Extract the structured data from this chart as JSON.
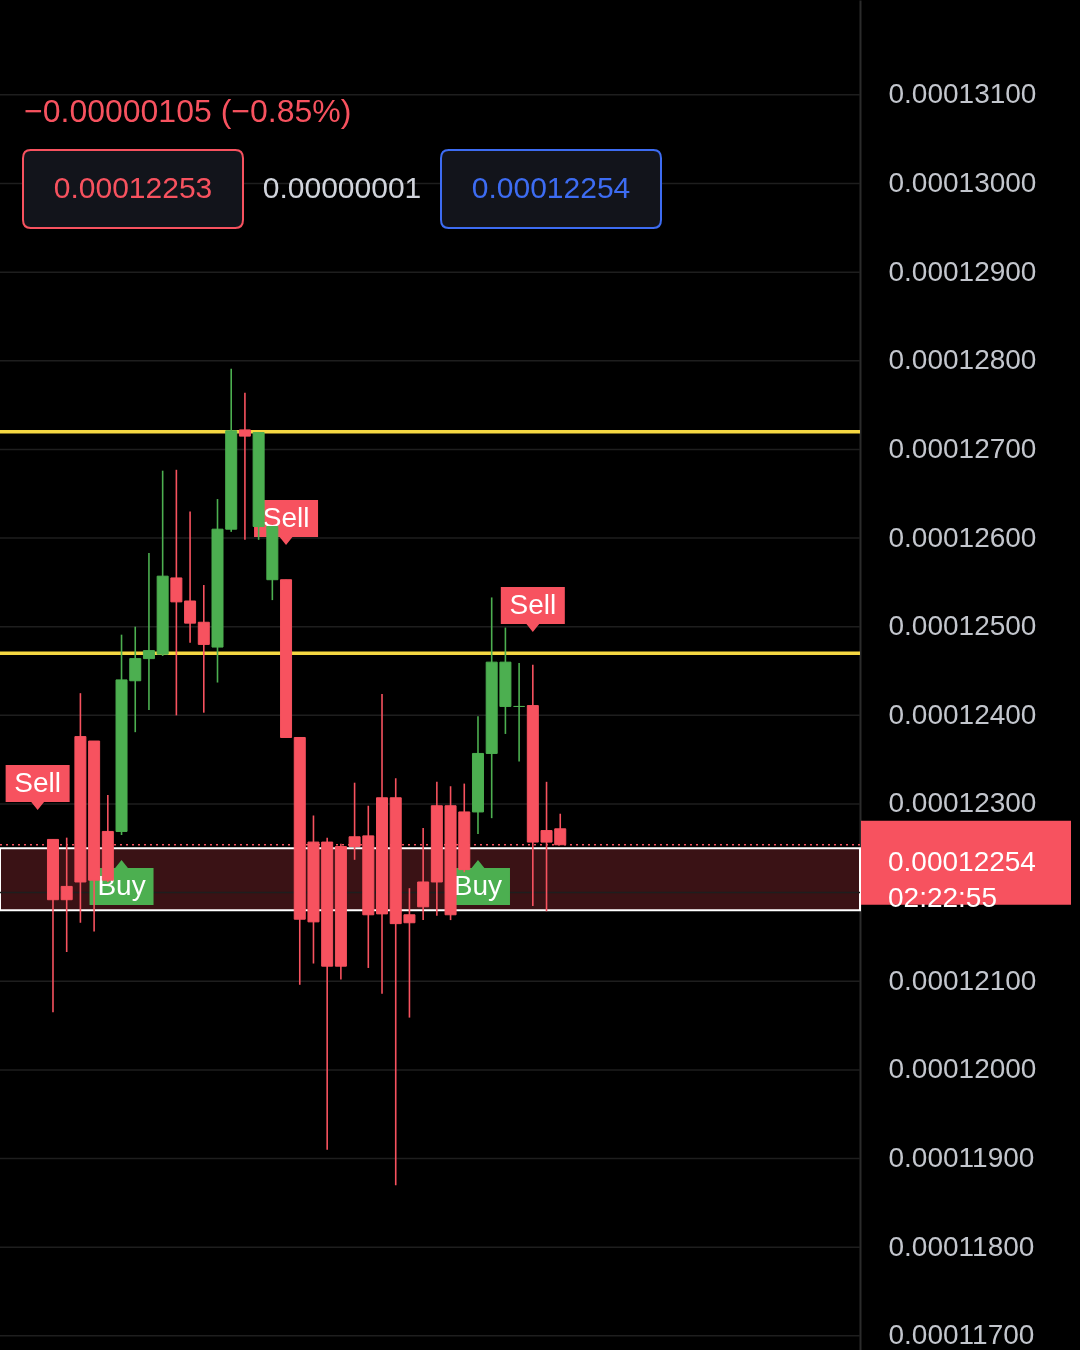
{
  "chart_data": {
    "type": "candlestick",
    "subtitle": "−0.00000105 (−0.85%)",
    "categories": [
      null,
      null,
      null,
      null,
      null,
      null,
      null,
      null,
      null,
      null,
      null,
      null,
      null,
      null,
      null,
      null,
      null,
      null,
      null,
      null,
      null,
      null,
      null,
      null,
      null,
      null,
      null,
      null,
      null,
      null,
      null,
      null,
      null,
      null,
      null,
      null,
      null,
      null,
      null,
      null,
      null,
      null,
      null,
      null,
      null,
      null,
      null,
      null,
      null,
      null,
      null,
      null,
      null,
      null,
      null,
      null,
      null,
      null,
      null,
      null,
      null,
      null
    ],
    "ohlc": [
      null,
      null,
      null,
      [
        0.0001226,
        0.0001226,
        0.00012065,
        0.00012192
      ],
      [
        0.00012207,
        0.00012262,
        0.00012133,
        0.00012192
      ],
      [
        0.00012376,
        0.00012425,
        0.00012166,
        0.00012212
      ],
      [
        0.00012371,
        0.00012371,
        0.00012156,
        0.00012214
      ],
      [
        0.00012269,
        0.0001231,
        0.00012212,
        0.00012214
      ],
      [
        0.00012269,
        0.00012491,
        0.00012265,
        0.0001244
      ],
      [
        0.00012439,
        0.000125,
        0.00012381,
        0.00012464
      ],
      [
        0.00012464,
        0.00012583,
        0.00012406,
        0.00012473
      ],
      [
        0.00012469,
        0.00012676,
        0.00012467,
        0.00012557
      ],
      [
        0.00012555,
        0.00012677,
        0.000124,
        0.00012528
      ],
      [
        0.00012529,
        0.0001263,
        0.00012482,
        0.00012504
      ],
      [
        0.00012505,
        0.00012547,
        0.00012403,
        0.0001248
      ],
      [
        0.00012477,
        0.00012644,
        0.00012437,
        0.0001261
      ],
      [
        0.0001261,
        0.00012791,
        0.00012607,
        0.00012721
      ],
      [
        0.00012722,
        0.00012764,
        0.00012598,
        0.00012715
      ],
      [
        0.00012613,
        0.00012719,
        0.00012598,
        0.00012719
      ],
      [
        0.00012553,
        0.00012613,
        0.0001253,
        0.00012613
      ],
      [
        0.00012553,
        0.00012553,
        0.00012375,
        0.00012375
      ],
      [
        0.00012375,
        0.00012375,
        0.00012096,
        0.0001217
      ],
      [
        0.00012257,
        0.00012287,
        0.0001212,
        0.00012167
      ],
      [
        0.00012257,
        0.00012262,
        0.0001191,
        0.00012117
      ],
      [
        0.00012252,
        0.00012255,
        0.00012102,
        0.00012117
      ],
      [
        0.00012263,
        0.00012324,
        0.00012237,
        0.00012252
      ],
      [
        0.00012264,
        0.00012298,
        0.00012115,
        0.00012175
      ],
      [
        0.00012307,
        0.00012424,
        0.00012086,
        0.00012176
      ],
      [
        0.00012307,
        0.00012329,
        0.0001187,
        0.00012165
      ],
      [
        0.00012175,
        0.00012205,
        0.00012059,
        0.00012166
      ],
      [
        0.00012212,
        0.00012273,
        0.00012169,
        0.00012184
      ],
      [
        0.00012298,
        0.00012325,
        0.00012174,
        0.00012212
      ],
      [
        0.00012298,
        0.0001232,
        0.00012169,
        0.00012175
      ],
      [
        0.00012291,
        0.00012323,
        0.00012223,
        0.00012226
      ],
      [
        0.00012291,
        0.00012399,
        0.00012266,
        0.00012357
      ],
      [
        0.00012357,
        0.00012533,
        0.00012284,
        0.0001246
      ],
      [
        0.0001241,
        0.00012499,
        0.00012379,
        0.0001246
      ],
      [
        0.0001241,
        0.00012459,
        0.00012348,
        0.0001241
      ],
      [
        0.00012411,
        0.00012457,
        0.00012185,
        0.00012257
      ],
      [
        0.0001227,
        0.00012325,
        0.00012179,
        0.00012257
      ],
      [
        0.00012272,
        0.00012289,
        0.00012254,
        0.00012254
      ],
      null,
      null,
      null,
      null,
      null,
      null,
      null,
      null,
      null,
      null,
      null,
      null,
      null,
      null,
      null,
      null,
      null,
      null,
      null,
      null,
      null
    ],
    "colors": [
      null,
      null,
      null,
      "#f7525f",
      "#f7525f",
      "#f7525f",
      "#f7525f",
      "#f7525f",
      "#4caf50",
      "#4caf50",
      "#4caf50",
      "#4caf50",
      "#f7525f",
      "#f7525f",
      "#f7525f",
      "#4caf50",
      "#4caf50",
      "#f7525f",
      "#4caf50",
      "#4caf50",
      "#f7525f",
      "#f7525f",
      "#f7525f",
      "#f7525f",
      "#f7525f",
      "#f7525f",
      "#f7525f",
      "#f7525f",
      "#f7525f",
      "#f7525f",
      "#f7525f",
      "#f7525f",
      "#f7525f",
      "#f7525f",
      "#4caf50",
      "#4caf50",
      "#4caf50",
      "#4caf50",
      "#f7525f",
      "#f7525f",
      "#f7525f",
      null,
      null,
      null,
      null,
      null,
      null,
      null,
      null,
      null,
      null,
      null,
      null,
      null,
      null,
      null,
      null,
      null,
      null,
      null,
      null,
      null
    ],
    "ylim": [
      0.00011684,
      0.00013207
    ],
    "yticks": [
      {
        "value": 0.000117,
        "label": "0.00011700"
      },
      {
        "value": 0.000118,
        "label": "0.00011800"
      },
      {
        "value": 0.000119,
        "label": "0.00011900"
      },
      {
        "value": 0.00012,
        "label": "0.00012000"
      },
      {
        "value": 0.000121,
        "label": "0.00012100"
      },
      {
        "value": 0.000122,
        "label": null
      },
      {
        "value": 0.000123,
        "label": "0.00012300"
      },
      {
        "value": 0.000124,
        "label": "0.00012400"
      },
      {
        "value": 0.000125,
        "label": "0.00012500"
      },
      {
        "value": 0.000126,
        "label": "0.00012600"
      },
      {
        "value": 0.000127,
        "label": "0.00012700"
      },
      {
        "value": 0.000128,
        "label": "0.00012800"
      },
      {
        "value": 0.000129,
        "label": "0.00012900"
      },
      {
        "value": 0.00013,
        "label": "0.00013000"
      },
      {
        "value": 0.000131,
        "label": "0.00013100"
      }
    ],
    "grid": "y",
    "tick_labels": "y",
    "bands": [
      {
        "axis": "y",
        "from": 0.0001218,
        "to": 0.0001225,
        "color": "#3a1215"
      }
    ],
    "ref_lines": [
      {
        "axis": "y",
        "value": 0.0001272,
        "color": "#f5d742",
        "line_style": "solid"
      },
      {
        "axis": "y",
        "value": 0.0001247,
        "color": "#f5d742",
        "line_style": "solid"
      },
      {
        "axis": "y",
        "value": 0.00012254,
        "label": "0.00012254\n02:22:55",
        "color": "#f7525f",
        "line_style": "dotted"
      }
    ],
    "annotations": [
      "0.00012253",
      "0.00000001",
      "0.00012254",
      "Sell",
      "Buy",
      "Sell",
      "Buy",
      "Sell"
    ]
  }
}
